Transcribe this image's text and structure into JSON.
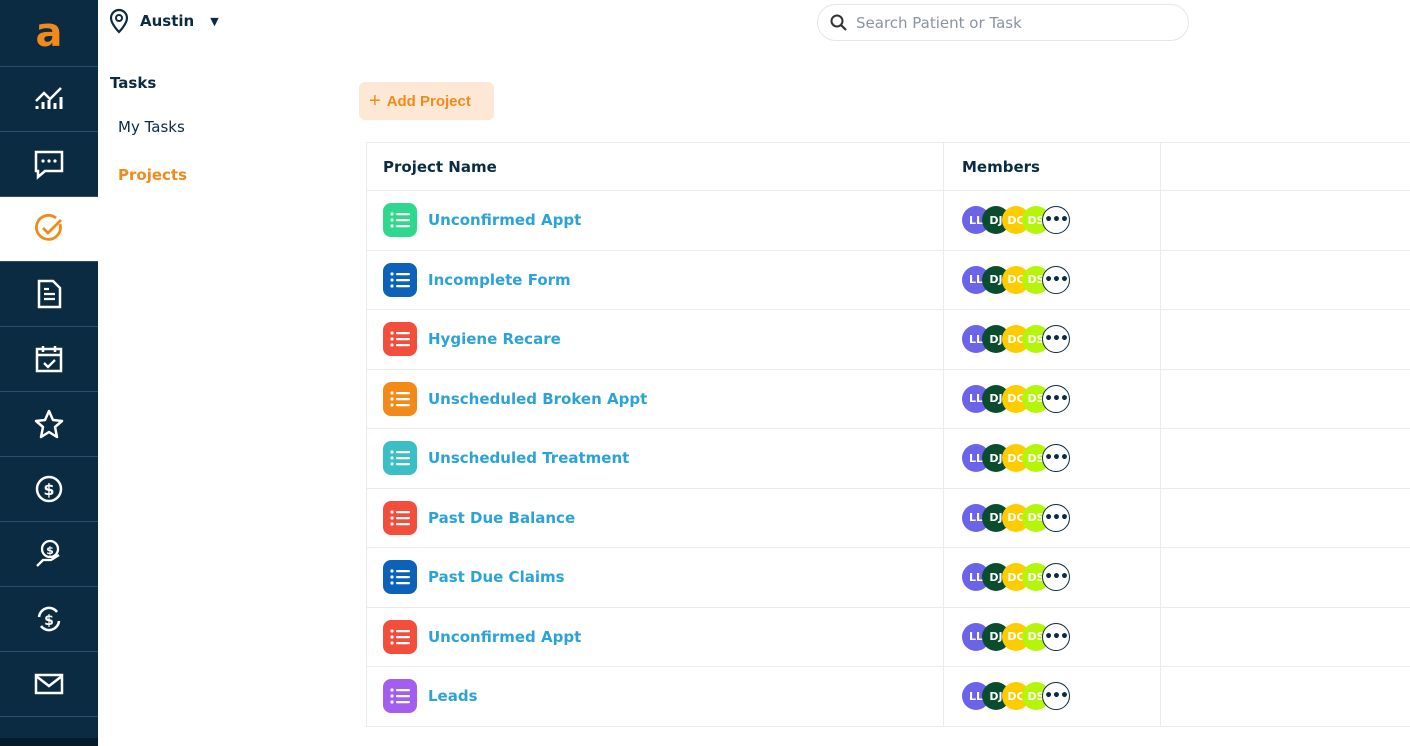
{
  "rail": {
    "logo": "a",
    "items": [
      "analytics-icon",
      "chat-icon",
      "tasks-icon",
      "document-icon",
      "calendar-icon",
      "star-icon",
      "dollar-icon",
      "payment-hand-icon",
      "refresh-dollar-icon",
      "mail-icon"
    ],
    "active": "tasks-icon"
  },
  "location": "Austin",
  "sub": {
    "heading": "Tasks",
    "items": [
      "My Tasks",
      "Projects"
    ],
    "active": "Projects"
  },
  "search": {
    "placeholder": "Search Patient or Task"
  },
  "add_label": "Add Project",
  "table": {
    "headers": [
      "Project Name",
      "Members"
    ],
    "rows": [
      {
        "name": "Unconfirmed Appt",
        "color": "#2ed98e"
      },
      {
        "name": "Incomplete Form",
        "color": "#0b62b8"
      },
      {
        "name": "Hygiene Recare",
        "color": "#f24e3b"
      },
      {
        "name": "Unscheduled Broken Appt",
        "color": "#f28a1a"
      },
      {
        "name": "Unscheduled Treatment",
        "color": "#3bbfc6"
      },
      {
        "name": "Past Due Balance",
        "color": "#f24e3b"
      },
      {
        "name": "Past Due Claims",
        "color": "#0b62b8"
      },
      {
        "name": "Unconfirmed Appt",
        "color": "#f24e3b"
      },
      {
        "name": "Leads",
        "color": "#a35ef0"
      }
    ],
    "members": [
      {
        "initials": "LL",
        "color": "#6b63e8"
      },
      {
        "initials": "DJ",
        "color": "#0a4d2e"
      },
      {
        "initials": "DC",
        "color": "#ffcc00"
      },
      {
        "initials": "DS",
        "color": "#b4f50a"
      }
    ],
    "more": "•••"
  }
}
